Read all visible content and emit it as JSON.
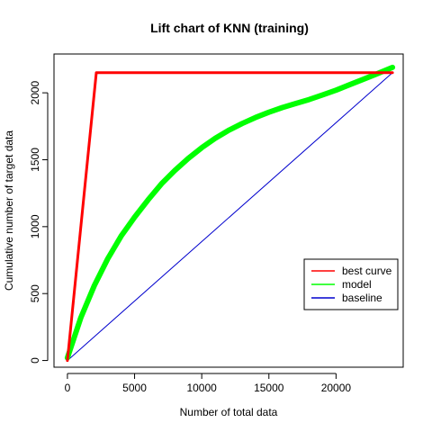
{
  "chart_data": {
    "type": "line",
    "title": "Lift chart of KNN (training)",
    "xlabel": "Number of total data",
    "ylabel": "Cumulative number of target data",
    "xlim": [
      -1000,
      25000
    ],
    "ylim": [
      -50,
      2290
    ],
    "xticks": [
      0,
      5000,
      10000,
      15000,
      20000
    ],
    "yticks": [
      0,
      500,
      1000,
      1500,
      2000
    ],
    "grid": false,
    "legend_position": "bottom-right",
    "series": [
      {
        "name": "best curve",
        "color": "#ff0000",
        "x": [
          0,
          2150,
          24200
        ],
        "y": [
          0,
          2150,
          2150
        ]
      },
      {
        "name": "model",
        "color": "#00ff00",
        "x": [
          0,
          1000,
          2000,
          3000,
          4000,
          5000,
          6000,
          7000,
          8000,
          9000,
          10000,
          11000,
          12000,
          13000,
          14000,
          15000,
          16000,
          17000,
          18000,
          19000,
          20000,
          21000,
          22000,
          23000,
          24200
        ],
        "y": [
          20,
          320,
          560,
          760,
          930,
          1070,
          1200,
          1320,
          1420,
          1510,
          1590,
          1660,
          1720,
          1770,
          1815,
          1855,
          1890,
          1920,
          1950,
          1985,
          2020,
          2060,
          2100,
          2140,
          2190
        ]
      },
      {
        "name": "baseline",
        "color": "#0000cd",
        "x": [
          0,
          24200
        ],
        "y": [
          0,
          2150
        ]
      }
    ]
  }
}
